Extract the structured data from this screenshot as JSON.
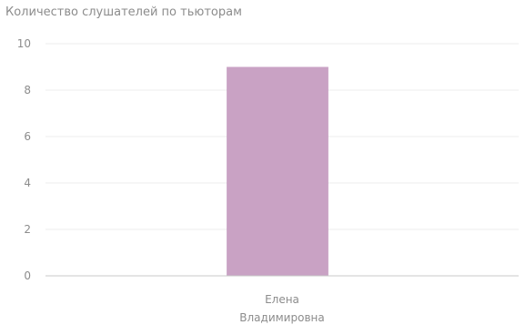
{
  "chart_data": {
    "type": "bar",
    "title": "Количество слушателей по тьюторам",
    "categories": [
      [
        "Елена",
        "Владимировна"
      ]
    ],
    "values": [
      9
    ],
    "ylim": [
      0,
      10
    ],
    "yticks": [
      0,
      2,
      4,
      6,
      8,
      10
    ],
    "grid": true,
    "bar_color": "#c9a2c4",
    "grid_color": "#ececec",
    "axis_color": "#c8c8c8"
  }
}
